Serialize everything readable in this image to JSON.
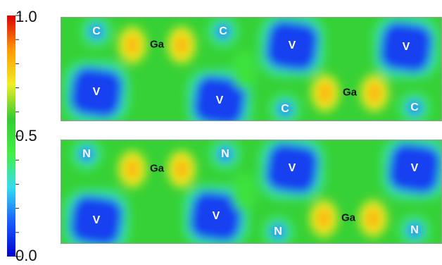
{
  "chart_data": [
    {
      "type": "heatmap",
      "title": "",
      "colorbar": {
        "min": 0.0,
        "max": 1.0,
        "tick_labels": [
          "1.0",
          "0.5",
          "0.0"
        ],
        "colormap": [
          "#0000cc",
          "#1a5cff",
          "#33ddee",
          "#44ee44",
          "#33cc33",
          "#eeee22",
          "#ff9900",
          "#dd0000"
        ]
      },
      "background_level": 0.55,
      "atoms": [
        {
          "label": "C",
          "kind": "label-light"
        },
        {
          "label": "Ga",
          "kind": "label-dark"
        },
        {
          "label": "C",
          "kind": "label-light"
        },
        {
          "label": "V",
          "kind": "label-light"
        },
        {
          "label": "V",
          "kind": "label-light"
        },
        {
          "label": "V",
          "kind": "label-light"
        },
        {
          "label": "V",
          "kind": "label-light"
        },
        {
          "label": "Ga",
          "kind": "label-dark"
        },
        {
          "label": "C",
          "kind": "label-light"
        },
        {
          "label": "C",
          "kind": "label-light"
        }
      ]
    },
    {
      "type": "heatmap",
      "title": "",
      "background_level": 0.55,
      "atoms": [
        {
          "label": "N",
          "kind": "label-light"
        },
        {
          "label": "Ga",
          "kind": "label-dark"
        },
        {
          "label": "N",
          "kind": "label-light"
        },
        {
          "label": "V",
          "kind": "label-light"
        },
        {
          "label": "V",
          "kind": "label-light"
        },
        {
          "label": "V",
          "kind": "label-light"
        },
        {
          "label": "V",
          "kind": "label-light"
        },
        {
          "label": "Ga",
          "kind": "label-dark"
        },
        {
          "label": "N",
          "kind": "label-light"
        },
        {
          "label": "N",
          "kind": "label-light"
        }
      ]
    }
  ]
}
